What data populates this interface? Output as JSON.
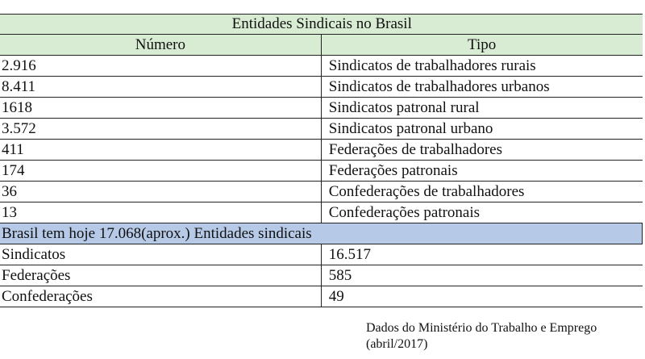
{
  "table": {
    "title": "Entidades Sindicais no Brasil",
    "headers": [
      "Número",
      "Tipo"
    ],
    "rows": [
      [
        "2.916",
        "Sindicatos de trabalhadores rurais"
      ],
      [
        "8.411",
        "Sindicatos de trabalhadores urbanos"
      ],
      [
        "1618",
        "Sindicatos patronal rural"
      ],
      [
        "3.572",
        "Sindicatos patronal urbano"
      ],
      [
        "411",
        "Federações de trabalhadores"
      ],
      [
        "174",
        "Federações patronais"
      ],
      [
        "36",
        "Confederações de trabalhadores"
      ],
      [
        "13",
        "Confederações patronais"
      ]
    ],
    "summary": "Brasil tem hoje 17.068(aprox.) Entidades sindicais",
    "totals": [
      [
        "Sindicatos",
        "16.517"
      ],
      [
        "Federações",
        "585"
      ],
      [
        "Confederações",
        "49"
      ]
    ],
    "colors": {
      "header_bg": "#d8ebd3",
      "summary_bg": "#b6c9e6"
    }
  },
  "source": {
    "line1": "Dados do Ministério do Trabalho e Emprego",
    "line2": "(abril/2017)"
  }
}
